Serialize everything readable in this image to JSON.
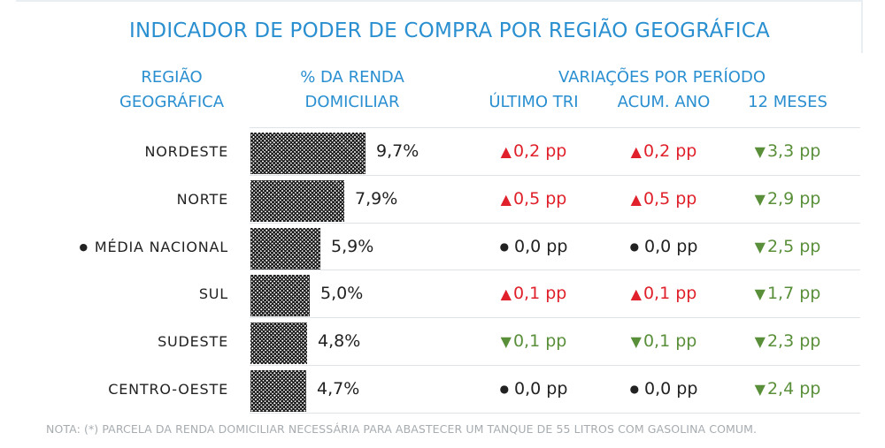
{
  "title": "INDICADOR DE PODER DE COMPRA POR REGIÃO GEOGRÁFICA",
  "headers": {
    "regiao_line1": "REGIÃO",
    "regiao_line2": "GEOGRÁFICA",
    "renda_line1": "% DA RENDA",
    "renda_line2": "DOMICILIAR",
    "variacoes": "VARIAÇÕES POR PERÍODO",
    "ultimo_tri": "ÚLTIMO TRI",
    "acum_ano": "ACUM. ANO",
    "doze_meses": "12 MESES"
  },
  "colors": {
    "header": "#2a8fd0",
    "up": "#e0202a",
    "down": "#5a8f3a",
    "neutral": "#222222",
    "bar_pattern": "#1a1a1a"
  },
  "chart_data": {
    "type": "bar",
    "orientation": "horizontal",
    "categories": [
      "NORDESTE",
      "NORTE",
      "MÉDIA NACIONAL",
      "SUL",
      "SUDESTE",
      "CENTRO-OESTE"
    ],
    "values": [
      9.7,
      7.9,
      5.9,
      5.0,
      4.8,
      4.7
    ],
    "value_labels": [
      "9,7%",
      "7,9%",
      "5,9%",
      "5,0%",
      "4,8%",
      "4,7%"
    ],
    "unit": "%",
    "xlim": [
      0,
      10
    ]
  },
  "rows": [
    {
      "label": "NORDESTE",
      "marker": "",
      "pct": "9,7%",
      "tri": {
        "dir": "up",
        "value": "0,2 pp"
      },
      "acum": {
        "dir": "up",
        "value": "0,2 pp"
      },
      "m12": {
        "dir": "down",
        "value": "3,3 pp"
      }
    },
    {
      "label": "NORTE",
      "marker": "",
      "pct": "7,9%",
      "tri": {
        "dir": "up",
        "value": "0,5 pp"
      },
      "acum": {
        "dir": "up",
        "value": "0,5 pp"
      },
      "m12": {
        "dir": "down",
        "value": "2,9 pp"
      }
    },
    {
      "label": "MÉDIA NACIONAL",
      "marker": "●",
      "pct": "5,9%",
      "tri": {
        "dir": "zero",
        "value": "0,0 pp"
      },
      "acum": {
        "dir": "zero",
        "value": "0,0 pp"
      },
      "m12": {
        "dir": "down",
        "value": "2,5 pp"
      }
    },
    {
      "label": "SUL",
      "marker": "",
      "pct": "5,0%",
      "tri": {
        "dir": "up",
        "value": "0,1 pp"
      },
      "acum": {
        "dir": "up",
        "value": "0,1 pp"
      },
      "m12": {
        "dir": "down",
        "value": "1,7 pp"
      }
    },
    {
      "label": "SUDESTE",
      "marker": "",
      "pct": "4,8%",
      "tri": {
        "dir": "down",
        "value": "0,1 pp"
      },
      "acum": {
        "dir": "down",
        "value": "0,1 pp"
      },
      "m12": {
        "dir": "down",
        "value": "2,3 pp"
      }
    },
    {
      "label": "CENTRO-OESTE",
      "marker": "",
      "pct": "4,7%",
      "tri": {
        "dir": "zero",
        "value": "0,0 pp"
      },
      "acum": {
        "dir": "zero",
        "value": "0,0 pp"
      },
      "m12": {
        "dir": "down",
        "value": "2,4 pp"
      }
    }
  ],
  "note": "NOTA: (*) PARCELA DA RENDA DOMICILIAR NECESSÁRIA PARA ABASTECER UM TANQUE DE 55 LITROS COM GASOLINA COMUM."
}
